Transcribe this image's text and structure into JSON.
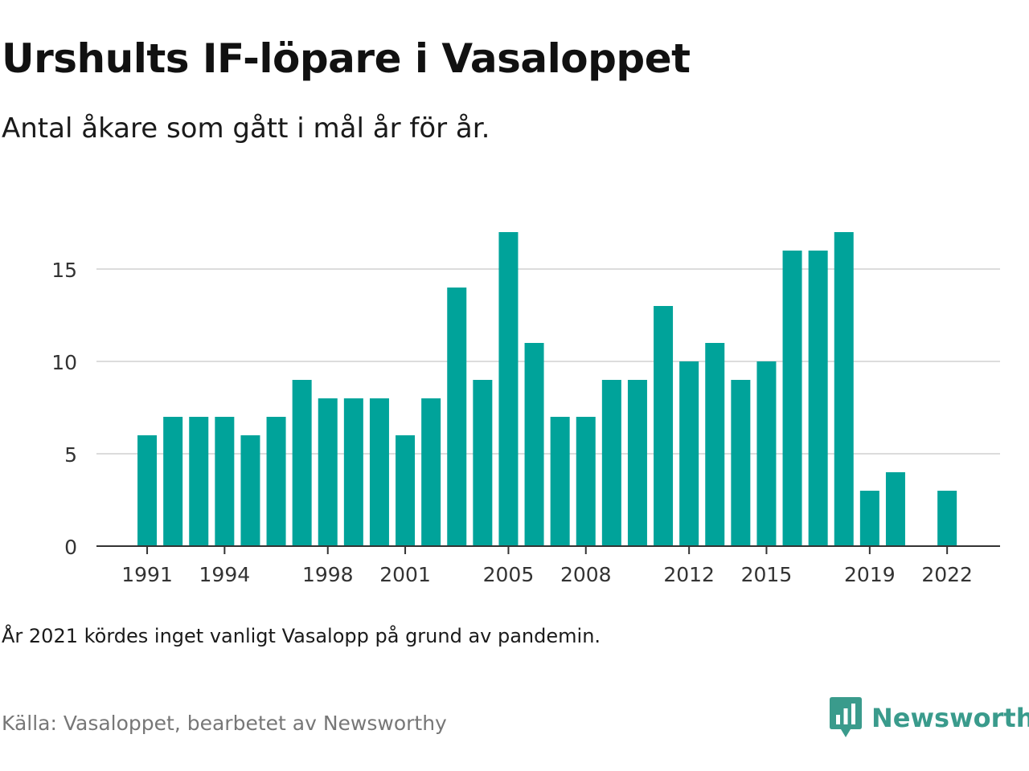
{
  "header": {
    "title": "Urshults IF-löpare i Vasaloppet",
    "subtitle": "Antal åkare som gått i mål år för år."
  },
  "footer": {
    "note": "År 2021 kördes inget vanligt Vasalopp på grund av pandemin.",
    "source": "Källa: Vasaloppet, bearbetet av Newsworthy",
    "brand": "Newsworthy"
  },
  "colors": {
    "bar": "#00a39a",
    "grid": "#dcdcdc",
    "axis": "#333333",
    "brand": "#3a9b8c"
  },
  "chart_data": {
    "type": "bar",
    "x": [
      1991,
      1992,
      1993,
      1994,
      1995,
      1996,
      1997,
      1998,
      1999,
      2000,
      2001,
      2002,
      2003,
      2004,
      2005,
      2006,
      2007,
      2008,
      2009,
      2010,
      2011,
      2012,
      2013,
      2014,
      2015,
      2016,
      2017,
      2018,
      2019,
      2020,
      2021,
      2022
    ],
    "values": [
      6,
      7,
      7,
      7,
      6,
      7,
      9,
      8,
      8,
      8,
      6,
      8,
      14,
      9,
      17,
      11,
      7,
      7,
      9,
      9,
      13,
      10,
      11,
      9,
      10,
      16,
      16,
      17,
      3,
      4,
      null,
      3
    ],
    "x_tick_labels": [
      "1991",
      "1994",
      "1998",
      "2001",
      "2005",
      "2008",
      "2012",
      "2015",
      "2019",
      "2022"
    ],
    "y_ticks": [
      0,
      5,
      10,
      15
    ],
    "ylim": [
      0,
      17
    ],
    "xlabel": "",
    "ylabel": "",
    "grid": "horizontal",
    "legend": "none"
  }
}
